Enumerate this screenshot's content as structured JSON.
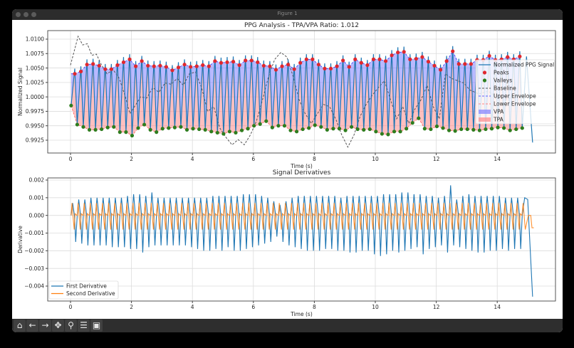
{
  "window": {
    "title": "Figure 1"
  },
  "toolbar": {
    "buttons": [
      {
        "icon": "home-icon",
        "glyph": "⌂"
      },
      {
        "icon": "back-arrow-icon",
        "glyph": "←"
      },
      {
        "icon": "forward-arrow-icon",
        "glyph": "→"
      },
      {
        "icon": "pan-move-icon",
        "glyph": "✥"
      },
      {
        "icon": "zoom-magnifier-icon",
        "glyph": "⚲"
      },
      {
        "icon": "configure-subplots-icon",
        "glyph": "☰"
      },
      {
        "icon": "save-floppy-icon",
        "glyph": "▣"
      }
    ]
  },
  "chart_data": [
    {
      "type": "line",
      "title": "PPG Analysis - TPA/VPA Ratio: 1.012",
      "xlabel": "Time (s)",
      "ylabel": "Normalized Signal",
      "xlim": [
        -0.75,
        15.9
      ],
      "ylim": [
        0.9903,
        1.0115
      ],
      "xticks": [
        "0",
        "2",
        "4",
        "6",
        "8",
        "10",
        "12",
        "14"
      ],
      "yticks": [
        "0.9925",
        "0.9950",
        "0.9975",
        "1.0000",
        "1.0025",
        "1.0050",
        "1.0075",
        "1.0100"
      ],
      "grid": true,
      "colors": {
        "signal": "#1f77b4",
        "peaks": "#e0282e",
        "valleys": "#2e7d1e",
        "baseline": "#555555",
        "upper_envelope": "#3030ff",
        "lower_envelope": "#ff6060",
        "vpa": "#8080ff",
        "tpa": "#ff8a8a"
      },
      "legend": {
        "position": "right",
        "entries": [
          "Normalized PPG Signal",
          "Peaks",
          "Valleys",
          "Baseline",
          "Upper Envelope",
          "Lower Envelope",
          "VPA",
          "TPA"
        ]
      },
      "peaks": {
        "start": 0.14,
        "step": 0.2,
        "values": [
          1.004,
          1.0044,
          1.0056,
          1.0057,
          1.0054,
          1.0048,
          1.0048,
          1.0055,
          1.006,
          1.0065,
          1.0053,
          1.0062,
          1.0054,
          1.0053,
          1.0054,
          1.0052,
          1.0046,
          1.0051,
          1.0056,
          1.0052,
          1.0053,
          1.0055,
          1.0053,
          1.0062,
          1.0059,
          1.006,
          1.0061,
          1.0055,
          1.0063,
          1.0063,
          1.006,
          1.0054,
          1.0053,
          1.0047,
          1.0053,
          1.0056,
          1.0048,
          1.0059,
          1.0065,
          1.0065,
          1.0056,
          1.0049,
          1.0049,
          1.0053,
          1.0063,
          1.0052,
          1.0065,
          1.0059,
          1.0055,
          1.0065,
          1.0065,
          1.0062,
          1.0072,
          1.0077,
          1.0078,
          1.0065,
          1.0066,
          1.0069,
          1.0061,
          1.0054,
          1.0047,
          1.0062,
          1.0079,
          1.0057,
          1.0057,
          1.0057,
          1.0064,
          1.0064,
          1.0071,
          1.0064,
          1.0065,
          1.0069,
          1.0065,
          1.007
        ]
      },
      "valleys": {
        "start": 0.02,
        "step": 0.2,
        "values": [
          0.9985,
          0.9952,
          0.9948,
          0.9943,
          0.9943,
          0.9944,
          0.9947,
          0.9948,
          0.9939,
          0.9939,
          0.9933,
          0.9946,
          0.9952,
          0.9943,
          0.9939,
          0.9945,
          0.9946,
          0.9947,
          0.9948,
          0.9943,
          0.9945,
          0.9944,
          0.9943,
          0.994,
          0.9938,
          0.9936,
          0.994,
          0.9938,
          0.9942,
          0.9945,
          0.995,
          0.9953,
          0.9958,
          0.9947,
          0.995,
          0.995,
          0.9942,
          0.994,
          0.9944,
          0.9946,
          0.9951,
          0.9948,
          0.9943,
          0.9945,
          0.9945,
          0.9942,
          0.9948,
          0.9944,
          0.9943,
          0.9944,
          0.994,
          0.9936,
          0.9935,
          0.994,
          0.994,
          0.9945,
          0.9955,
          0.9963,
          0.9945,
          0.9944,
          0.9949,
          0.9946,
          0.9942,
          0.9941,
          0.9944,
          0.9944,
          0.9943,
          0.9942,
          0.9944,
          0.9945,
          0.9947,
          0.9946,
          0.9942,
          0.9944,
          0.9946
        ]
      },
      "signal_spike_above_peak": 0.0009,
      "signal_tail": [
        [
          14.96,
          1.007
        ],
        [
          15.16,
          0.9921
        ]
      ],
      "baseline": [
        [
          0,
          1.0055
        ],
        [
          0.25,
          1.0105
        ],
        [
          0.4,
          1.009
        ],
        [
          0.55,
          1.0092
        ],
        [
          0.7,
          1.0072
        ],
        [
          0.85,
          1.0074
        ],
        [
          1.0,
          1.0057
        ],
        [
          1.2,
          1.004
        ],
        [
          1.4,
          1.0047
        ],
        [
          1.6,
          1.0032
        ],
        [
          1.8,
          1.0
        ],
        [
          1.95,
          0.9971
        ],
        [
          2.1,
          0.9983
        ],
        [
          2.3,
          1.0
        ],
        [
          2.5,
          0.9998
        ],
        [
          2.7,
          1.0016
        ],
        [
          2.9,
          1.0008
        ],
        [
          3.1,
          1.0024
        ],
        [
          3.3,
          1.0022
        ],
        [
          3.5,
          1.0032
        ],
        [
          3.7,
          1.002
        ],
        [
          3.9,
          1.004
        ],
        [
          4.1,
          1.0043
        ],
        [
          4.3,
          1.0016
        ],
        [
          4.5,
          0.9975
        ],
        [
          4.7,
          0.9983
        ],
        [
          4.9,
          0.9946
        ],
        [
          5.1,
          0.993
        ],
        [
          5.3,
          0.9917
        ],
        [
          5.5,
          0.9926
        ],
        [
          5.7,
          0.9917
        ],
        [
          5.9,
          0.9934
        ],
        [
          6.1,
          0.9958
        ],
        [
          6.3,
          0.9995
        ],
        [
          6.5,
          1.0036
        ],
        [
          6.7,
          1.0065
        ],
        [
          6.9,
          1.0077
        ],
        [
          7.1,
          1.0069
        ],
        [
          7.3,
          1.0036
        ],
        [
          7.5,
          0.9995
        ],
        [
          7.7,
          0.9971
        ],
        [
          7.9,
          0.9954
        ],
        [
          8.1,
          0.9971
        ],
        [
          8.3,
          0.9987
        ],
        [
          8.5,
          0.9983
        ],
        [
          8.7,
          0.9962
        ],
        [
          8.9,
          0.9934
        ],
        [
          9.1,
          0.9913
        ],
        [
          9.3,
          0.9934
        ],
        [
          9.5,
          0.9966
        ],
        [
          9.7,
          0.9987
        ],
        [
          9.9,
          1.0003
        ],
        [
          10.1,
          1.0016
        ],
        [
          10.3,
          1.0028
        ],
        [
          10.5,
          0.9995
        ],
        [
          10.7,
          0.9962
        ],
        [
          10.9,
          0.9983
        ],
        [
          11.1,
          0.9954
        ],
        [
          11.3,
          0.9979
        ],
        [
          11.5,
          0.9995
        ],
        [
          11.7,
          1.002
        ],
        [
          11.9,
          0.9983
        ],
        [
          12.1,
          0.9962
        ],
        [
          12.3,
          1.004
        ],
        [
          12.5,
          1.0032
        ],
        [
          12.7,
          1.0028
        ],
        [
          12.9,
          1.0024
        ],
        [
          13.1,
          1.0012
        ],
        [
          13.4,
          1.0005
        ],
        [
          13.7,
          1.001
        ],
        [
          14.0,
          1.0
        ],
        [
          14.3,
          0.9995
        ],
        [
          14.6,
          1.0002
        ],
        [
          14.9,
          0.9998
        ]
      ]
    },
    {
      "type": "line",
      "title": "Signal Derivatives",
      "xlabel": "Time (s)",
      "ylabel": "Derivative",
      "xlim": [
        -0.75,
        15.9
      ],
      "ylim": [
        -0.0044,
        0.00222
      ],
      "xticks": [
        "0",
        "2",
        "4",
        "6",
        "8",
        "10",
        "12",
        "14"
      ],
      "yticks": [
        "−0.004",
        "−0.003",
        "−0.002",
        "−0.001",
        "0.000",
        "0.001",
        "0.002"
      ],
      "grid": true,
      "colors": {
        "first": "#1f77b4",
        "second": "#ff7f0e"
      },
      "legend": {
        "position": "lower-left",
        "entries": [
          "First Derivative",
          "Second Derivative"
        ]
      },
      "first_derivative": {
        "beat_start": 0.02,
        "beat_step": 0.2,
        "max": [
          0.0007,
          0.0009,
          0.0009,
          0.001,
          0.001,
          0.001,
          0.001,
          0.001,
          0.001,
          0.0011,
          0.0012,
          0.0012,
          0.0011,
          0.0013,
          0.001,
          0.001,
          0.001,
          0.001,
          0.001,
          0.001,
          0.001,
          0.001,
          0.001,
          0.0011,
          0.0011,
          0.0011,
          0.0011,
          0.0011,
          0.0012,
          0.0012,
          0.0012,
          0.0011,
          0.001,
          0.0008,
          0.0006,
          0.0008,
          0.001,
          0.0011,
          0.0011,
          0.0011,
          0.0011,
          0.0011,
          0.0011,
          0.0011,
          0.001,
          0.0011,
          0.0011,
          0.0011,
          0.0011,
          0.0011,
          0.0011,
          0.0012,
          0.0012,
          0.0012,
          0.0013,
          0.0013,
          0.0012,
          0.0012,
          0.0011,
          0.0011,
          0.001,
          0.0011,
          0.0017,
          0.0009,
          0.0011,
          0.0012,
          0.0011,
          0.0011,
          0.0011,
          0.0011,
          0.0011,
          0.001,
          0.001,
          0.001
        ],
        "min": [
          -0.0015,
          -0.0016,
          -0.0017,
          -0.0017,
          -0.0017,
          -0.0017,
          -0.0018,
          -0.0018,
          -0.0018,
          -0.0019,
          -0.0019,
          -0.0021,
          -0.0018,
          -0.0017,
          -0.0017,
          -0.0017,
          -0.0017,
          -0.0017,
          -0.0017,
          -0.0018,
          -0.0019,
          -0.002,
          -0.002,
          -0.0019,
          -0.002,
          -0.0018,
          -0.002,
          -0.002,
          -0.0019,
          -0.0018,
          -0.0017,
          -0.0016,
          -0.0015,
          -0.0012,
          -0.0015,
          -0.0017,
          -0.0018,
          -0.0019,
          -0.002,
          -0.002,
          -0.002,
          -0.0019,
          -0.0019,
          -0.002,
          -0.002,
          -0.0021,
          -0.0021,
          -0.002,
          -0.002,
          -0.0022,
          -0.0023,
          -0.0022,
          -0.002,
          -0.0021,
          -0.002,
          -0.0019,
          -0.0018,
          -0.0022,
          -0.0019,
          -0.0018,
          -0.0017,
          -0.0021,
          -0.0017,
          -0.0018,
          -0.0019,
          -0.002,
          -0.0021,
          -0.0021,
          -0.002,
          -0.002,
          -0.0019,
          -0.002,
          -0.0019,
          -0.0019
        ],
        "end_value": -0.0046
      },
      "second_derivative": {
        "max": 0.0007,
        "min": -0.0008,
        "end_value": -0.0007
      }
    }
  ]
}
